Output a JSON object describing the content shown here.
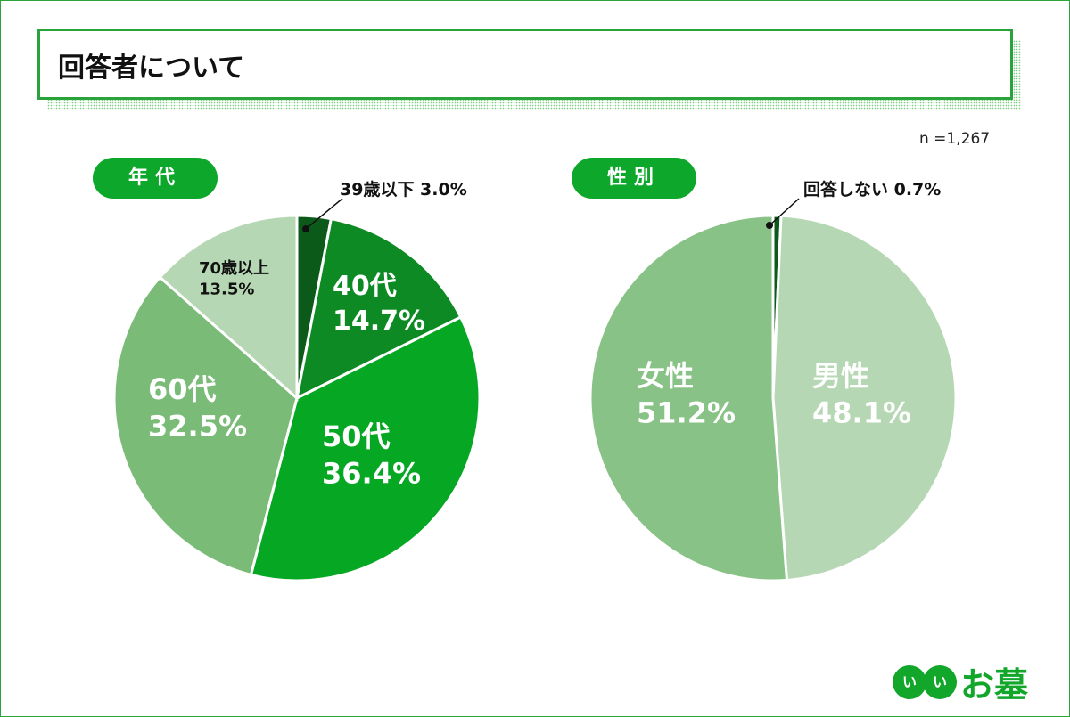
{
  "title": "回答者について",
  "sample_size": "n =1,267",
  "logo": {
    "mark": "いい",
    "text": "お墓"
  },
  "colors": {
    "accent": "#2aa33a",
    "pill": "#0da82b"
  },
  "chart_data": [
    {
      "type": "pie",
      "title": "年代",
      "slices": [
        {
          "label": "39歳以下",
          "value": 3.0,
          "text": "39歳以下 3.0%",
          "color": "#0b5a19"
        },
        {
          "label": "40代",
          "value": 14.7,
          "text": "14.7%",
          "color": "#0d8a24"
        },
        {
          "label": "50代",
          "value": 36.4,
          "text": "36.4%",
          "color": "#06a823"
        },
        {
          "label": "60代",
          "value": 32.5,
          "text": "32.5%",
          "color": "#7bbb78"
        },
        {
          "label": "70歳以上",
          "value": 13.5,
          "text": "13.5%",
          "color": "#b6d7b3"
        }
      ]
    },
    {
      "type": "pie",
      "title": "性別",
      "slices": [
        {
          "label": "回答しない",
          "value": 0.7,
          "text": "回答しない 0.7%",
          "color": "#0b5a19"
        },
        {
          "label": "男性",
          "value": 48.1,
          "text": "48.1%",
          "color": "#b6d7b3"
        },
        {
          "label": "女性",
          "value": 51.2,
          "text": "51.2%",
          "color": "#88c286"
        }
      ]
    }
  ]
}
